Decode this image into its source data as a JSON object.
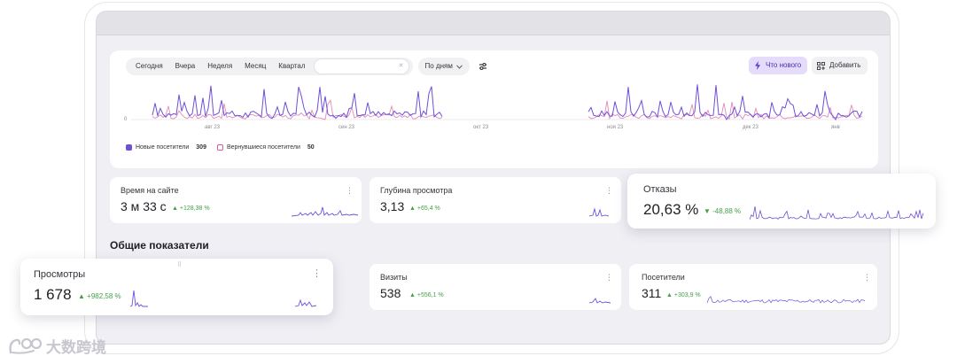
{
  "toolbar": {
    "periods": [
      "Сегодня",
      "Вчера",
      "Неделя",
      "Месяц",
      "Квартал"
    ],
    "grouping_label": "По дням",
    "whats_new_label": "Что нового",
    "add_label": "Добавить"
  },
  "chart": {
    "y_zero_label": "0",
    "x_ticks": [
      "авг 23",
      "сен 23",
      "окт 23",
      "ноя 23",
      "дек 23",
      "янв"
    ],
    "legend": [
      {
        "name": "Новые посетители",
        "count": "309",
        "color": "#6f4fd8"
      },
      {
        "name": "Вернувшиеся посетители",
        "count": "50",
        "color": "#d65a9a"
      }
    ]
  },
  "cards": {
    "time_on_site": {
      "title": "Время на сайте",
      "value": "3 м 33 с",
      "delta": "+128,38 %"
    },
    "depth": {
      "title": "Глубина просмотра",
      "value": "3,13",
      "delta": "+65,4 %"
    },
    "bounces": {
      "title": "Отказы",
      "value": "20,63 %",
      "delta": "-48,88 %"
    },
    "pageviews": {
      "title": "Просмотры",
      "value": "1 678",
      "delta": "+982,58 %"
    },
    "visits": {
      "title": "Визиты",
      "value": "538",
      "delta": "+556,1 %"
    },
    "visitors": {
      "title": "Посетители",
      "value": "311",
      "delta": "+303,9 %"
    }
  },
  "section": {
    "title": "Общие показатели"
  },
  "watermark": {
    "text": "大数跨境"
  },
  "colors": {
    "accent": "#6f4fd8",
    "returning": "#d65a9a",
    "positive": "#43a047"
  }
}
